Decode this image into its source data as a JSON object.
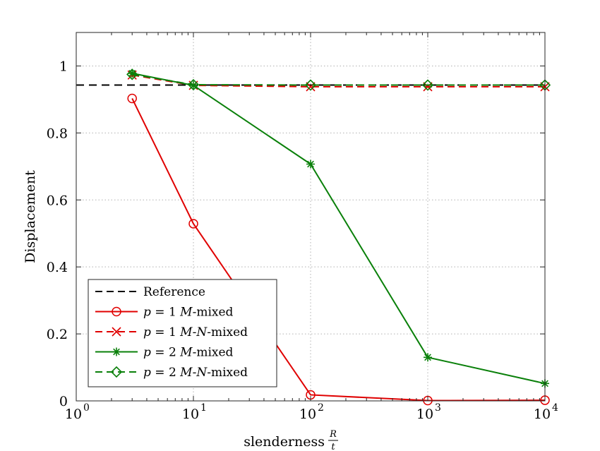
{
  "chart_data": {
    "type": "line",
    "title": "",
    "xlabel": "slenderness",
    "xlabel_fraction": {
      "numerator": "R",
      "denominator": "t"
    },
    "ylabel": "Displacement",
    "xscale": "log",
    "xlim": [
      1,
      10000
    ],
    "ylim": [
      0,
      1.1
    ],
    "grid": true,
    "x_ticks": [
      {
        "value": 1,
        "base": "10",
        "exponent": "0"
      },
      {
        "value": 10,
        "base": "10",
        "exponent": "1"
      },
      {
        "value": 100,
        "base": "10",
        "exponent": "2"
      },
      {
        "value": 1000,
        "base": "10",
        "exponent": "3"
      },
      {
        "value": 10000,
        "base": "10",
        "exponent": "4"
      }
    ],
    "y_ticks": [
      {
        "value": 0,
        "label": "0"
      },
      {
        "value": 0.2,
        "label": "0.2"
      },
      {
        "value": 0.4,
        "label": "0.4"
      },
      {
        "value": 0.6,
        "label": "0.6"
      },
      {
        "value": 0.8,
        "label": "0.8"
      },
      {
        "value": 1,
        "label": "1"
      }
    ],
    "legend_position": "bottom-left",
    "series": [
      {
        "name": "Reference",
        "legend_parts": [
          {
            "t": "Reference",
            "italic": false
          }
        ],
        "color": "#000000",
        "dash": "dashed",
        "marker": "none",
        "x": [
          1,
          10000
        ],
        "y": [
          0.943,
          0.943
        ]
      },
      {
        "name": "p = 1 M-mixed",
        "legend_parts": [
          {
            "t": "p",
            "italic": true
          },
          {
            "t": " = 1 ",
            "italic": false
          },
          {
            "t": "M",
            "italic": true
          },
          {
            "t": "-mixed",
            "italic": false
          }
        ],
        "color": "#e00000",
        "dash": "solid",
        "marker": "circle",
        "x": [
          3,
          10,
          100,
          1000,
          10000
        ],
        "y": [
          0.903,
          0.529,
          0.018,
          0.001,
          0.002
        ]
      },
      {
        "name": "p = 1 M-N-mixed",
        "legend_parts": [
          {
            "t": "p",
            "italic": true
          },
          {
            "t": " = 1 ",
            "italic": false
          },
          {
            "t": "M",
            "italic": true
          },
          {
            "t": "-",
            "italic": false
          },
          {
            "t": "N",
            "italic": true
          },
          {
            "t": "-mixed",
            "italic": false
          }
        ],
        "color": "#e00000",
        "dash": "dashed",
        "marker": "x",
        "x": [
          3,
          10,
          100,
          1000,
          10000
        ],
        "y": [
          0.973,
          0.942,
          0.938,
          0.938,
          0.938
        ]
      },
      {
        "name": "p = 2 M-mixed",
        "legend_parts": [
          {
            "t": "p",
            "italic": true
          },
          {
            "t": " = 2 ",
            "italic": false
          },
          {
            "t": "M",
            "italic": true
          },
          {
            "t": "-mixed",
            "italic": false
          }
        ],
        "color": "#0a800a",
        "dash": "solid",
        "marker": "asterisk",
        "x": [
          3,
          10,
          100,
          1000,
          10000
        ],
        "y": [
          0.978,
          0.942,
          0.707,
          0.13,
          0.052
        ]
      },
      {
        "name": "p = 2 M-N-mixed",
        "legend_parts": [
          {
            "t": "p",
            "italic": true
          },
          {
            "t": " = 2 ",
            "italic": false
          },
          {
            "t": "M",
            "italic": true
          },
          {
            "t": "-",
            "italic": false
          },
          {
            "t": "N",
            "italic": true
          },
          {
            "t": "-mixed",
            "italic": false
          }
        ],
        "color": "#0a800a",
        "dash": "dashed",
        "marker": "diamond",
        "x": [
          3,
          10,
          100,
          1000,
          10000
        ],
        "y": [
          0.975,
          0.944,
          0.943,
          0.943,
          0.943
        ]
      }
    ]
  }
}
